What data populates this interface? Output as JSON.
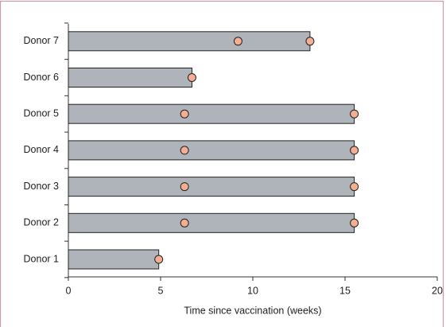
{
  "chart_data": {
    "type": "swimmer",
    "x_label": "Time since vaccination (weeks)",
    "categories": [
      "Donor 1",
      "Donor 2",
      "Donor 3",
      "Donor 4",
      "Donor 5",
      "Donor 6",
      "Donor 7"
    ],
    "values": [
      4.9,
      15.5,
      15.5,
      15.5,
      15.5,
      6.7,
      13.1
    ],
    "events": [
      [
        4.9
      ],
      [
        6.3,
        15.5
      ],
      [
        6.3,
        15.5
      ],
      [
        6.3,
        15.5
      ],
      [
        6.3,
        15.5
      ],
      [
        6.7
      ],
      [
        9.2,
        13.1
      ]
    ],
    "color": "#aeb4ba",
    "marker_color": "#f4ae92",
    "xlim": [
      0,
      20
    ],
    "xticks": [
      0,
      5,
      10,
      15,
      20
    ]
  }
}
